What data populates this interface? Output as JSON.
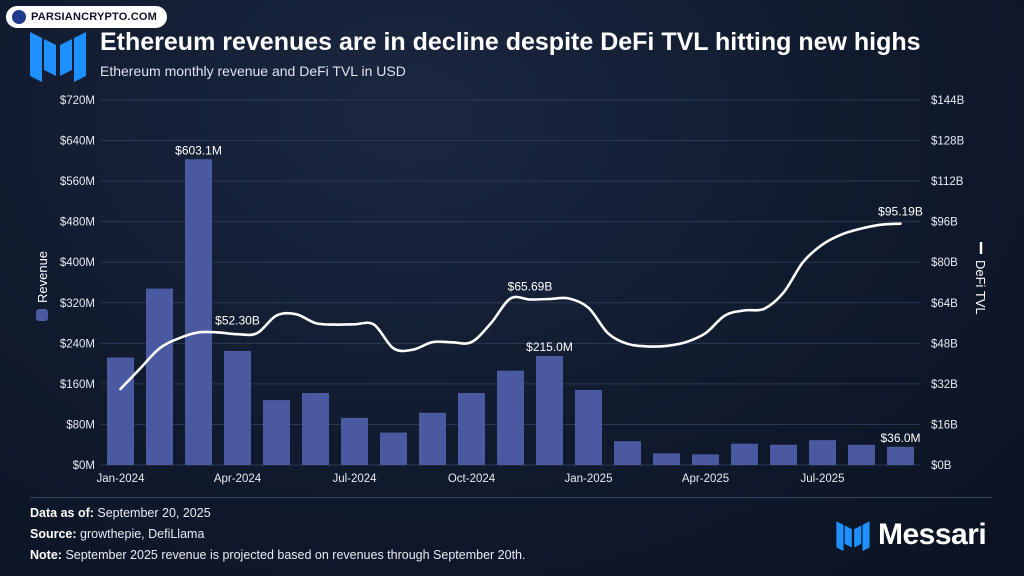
{
  "watermark": "PARSIANCRYPTO.COM",
  "title": "Ethereum revenues are in decline despite DeFi TVL hitting new highs",
  "subtitle": "Ethereum monthly revenue and DeFi TVL in USD",
  "colors": {
    "bar": "#4a5aa0",
    "line": "#ffffff",
    "accent": "#1e90ff"
  },
  "chart_data": {
    "type": "bar",
    "categories": [
      "Jan-2024",
      "Feb-2024",
      "Mar-2024",
      "Apr-2024",
      "May-2024",
      "Jun-2024",
      "Jul-2024",
      "Aug-2024",
      "Sep-2024",
      "Oct-2024",
      "Nov-2024",
      "Dec-2024",
      "Jan-2025",
      "Feb-2025",
      "Mar-2025",
      "Apr-2025",
      "May-2025",
      "Jun-2025",
      "Jul-2025",
      "Aug-2025",
      "Sep-2025"
    ],
    "x_tick_labels": [
      "Jan-2024",
      "Apr-2024",
      "Jul-2024",
      "Oct-2024",
      "Jan-2025",
      "Apr-2025",
      "Jul-2025"
    ],
    "x_tick_indices": [
      0,
      3,
      6,
      9,
      12,
      15,
      18
    ],
    "series": [
      {
        "name": "Revenue",
        "type": "bar",
        "axis": "left",
        "values": [
          212,
          348,
          603.1,
          225,
          128,
          142,
          93,
          64,
          103,
          142,
          186,
          215.0,
          148,
          47,
          23,
          21,
          42,
          40,
          49,
          40,
          36.0
        ]
      },
      {
        "name": "DeFi TVL",
        "type": "line",
        "axis": "right",
        "x": [
          0,
          0.5,
          1,
          1.5,
          2,
          2.5,
          3,
          3.5,
          4,
          4.5,
          5,
          5.5,
          6,
          6.5,
          7,
          7.5,
          8,
          8.5,
          9,
          9.5,
          10,
          10.5,
          11,
          11.5,
          12,
          12.5,
          13,
          13.5,
          14,
          14.5,
          15,
          15.5,
          16,
          16.5,
          17,
          17.5,
          18,
          18.5,
          19,
          19.5,
          20
        ],
        "values": [
          30,
          38,
          46,
          50,
          52.3,
          52.3,
          51.6,
          52,
          59,
          59.5,
          56,
          55.4,
          55.5,
          55.4,
          46,
          45.5,
          48.5,
          48.4,
          48.5,
          56,
          65.69,
          65.3,
          65.5,
          65.69,
          62,
          52,
          47.8,
          46.8,
          47,
          48.5,
          52,
          59,
          61,
          61.6,
          68,
          80,
          87,
          91,
          93.3,
          94.8,
          95.19
        ]
      }
    ],
    "data_labels": [
      {
        "series": "Revenue",
        "index": 2,
        "text": "$603.1M"
      },
      {
        "series": "Revenue",
        "index": 11,
        "text": "$215.0M"
      },
      {
        "series": "Revenue",
        "index": 20,
        "text": "$36.0M"
      },
      {
        "series": "DeFi TVL",
        "x": 3,
        "value": 52.3,
        "text": "$52.30B"
      },
      {
        "series": "DeFi TVL",
        "x": 10.5,
        "value": 65.69,
        "text": "$65.69B"
      },
      {
        "series": "DeFi TVL",
        "x": 20,
        "value": 95.19,
        "text": "$95.19B"
      }
    ],
    "left_axis": {
      "label": "Revenue",
      "ylim": [
        0,
        720
      ],
      "ticks": [
        0,
        80,
        160,
        240,
        320,
        400,
        480,
        560,
        640,
        720
      ],
      "tick_labels": [
        "$0M",
        "$80M",
        "$160M",
        "$240M",
        "$320M",
        "$400M",
        "$480M",
        "$560M",
        "$640M",
        "$720M"
      ]
    },
    "right_axis": {
      "label": "DeFi TVL",
      "ylim": [
        0,
        144
      ],
      "ticks": [
        0,
        16,
        32,
        48,
        64,
        80,
        96,
        112,
        128,
        144
      ],
      "tick_labels": [
        "$0B",
        "$16B",
        "$32B",
        "$48B",
        "$64B",
        "$80B",
        "$96B",
        "$112B",
        "$128B",
        "$144B"
      ]
    },
    "grid": true
  },
  "footer": {
    "data_as_of_label": "Data as of:",
    "data_as_of_value": "September 20, 2025",
    "source_label": "Source:",
    "source_value": "growthepie, DefiLlama",
    "note_label": "Note:",
    "note_value": "September 2025 revenue is projected based on revenues through September 20th."
  },
  "brand": {
    "name": "Messari"
  },
  "icons": {
    "logo": "messari-logo-icon",
    "brand": "messari-mark-icon"
  }
}
